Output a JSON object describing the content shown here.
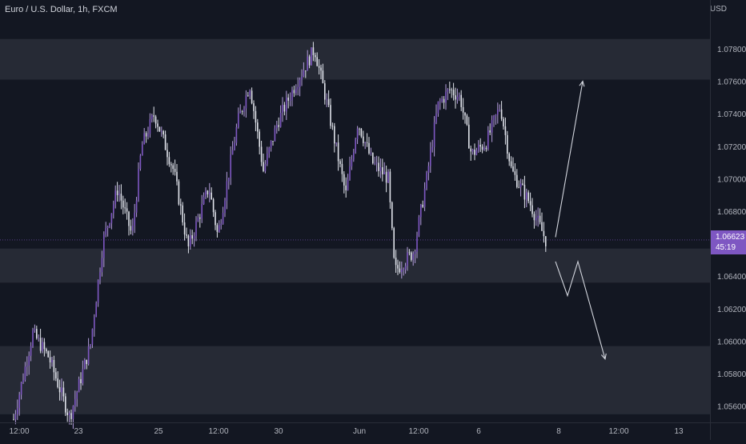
{
  "header": {
    "title": "Euro / U.S. Dollar, 1h, FXCM",
    "currency": "USD"
  },
  "last_price": {
    "value": "1.06623",
    "countdown": "45:19"
  },
  "colors": {
    "background": "#131722",
    "candle": "#b39ddb",
    "zone": "#262a35",
    "accent": "#7e57c2",
    "arrow": "#d1d4dc"
  },
  "chart_data": {
    "type": "candlestick",
    "title": "Euro / U.S. Dollar, 1h, FXCM",
    "y_unit": "USD",
    "ylim": [
      1.055,
      1.081
    ],
    "y_ticks": [
      "1.07800",
      "1.07600",
      "1.07400",
      "1.07200",
      "1.07000",
      "1.06800",
      "1.06400",
      "1.06200",
      "1.06000",
      "1.05800",
      "1.05600"
    ],
    "x_ticks": [
      "12:00",
      "23",
      "25",
      "12:00",
      "30",
      "Jun",
      "12:00",
      "6",
      "8",
      "12:00",
      "13"
    ],
    "grid": false,
    "zones": [
      {
        "from": 1.0761,
        "to": 1.0786
      },
      {
        "from": 1.0636,
        "to": 1.0657
      },
      {
        "from": 1.0555,
        "to": 1.0597
      }
    ],
    "last_price_line": 1.06623,
    "price_path": [
      {
        "x": 0,
        "y": 1.0552
      },
      {
        "x": 24,
        "y": 1.0605
      },
      {
        "x": 44,
        "y": 1.059
      },
      {
        "x": 70,
        "y": 1.0553
      },
      {
        "x": 96,
        "y": 1.0598
      },
      {
        "x": 112,
        "y": 1.0662
      },
      {
        "x": 130,
        "y": 1.0694
      },
      {
        "x": 148,
        "y": 1.0665
      },
      {
        "x": 160,
        "y": 1.072
      },
      {
        "x": 176,
        "y": 1.074
      },
      {
        "x": 200,
        "y": 1.0705
      },
      {
        "x": 218,
        "y": 1.0657
      },
      {
        "x": 244,
        "y": 1.0695
      },
      {
        "x": 255,
        "y": 1.0665
      },
      {
        "x": 280,
        "y": 1.0735
      },
      {
        "x": 295,
        "y": 1.0758
      },
      {
        "x": 312,
        "y": 1.0705
      },
      {
        "x": 330,
        "y": 1.0735
      },
      {
        "x": 352,
        "y": 1.0758
      },
      {
        "x": 376,
        "y": 1.078
      },
      {
        "x": 392,
        "y": 1.0745
      },
      {
        "x": 415,
        "y": 1.069
      },
      {
        "x": 430,
        "y": 1.0735
      },
      {
        "x": 448,
        "y": 1.071
      },
      {
        "x": 468,
        "y": 1.07
      },
      {
        "x": 476,
        "y": 1.0643
      },
      {
        "x": 500,
        "y": 1.0655
      },
      {
        "x": 516,
        "y": 1.07
      },
      {
        "x": 530,
        "y": 1.0745
      },
      {
        "x": 545,
        "y": 1.0755
      },
      {
        "x": 558,
        "y": 1.075
      },
      {
        "x": 572,
        "y": 1.0715
      },
      {
        "x": 590,
        "y": 1.0722
      },
      {
        "x": 608,
        "y": 1.0745
      },
      {
        "x": 622,
        "y": 1.0705
      },
      {
        "x": 645,
        "y": 1.0685
      },
      {
        "x": 665,
        "y": 1.0662
      }
    ],
    "projection_arrows": [
      {
        "points": [
          [
            694,
            1.0664
          ],
          [
            728,
            1.076
          ]
        ]
      },
      {
        "points": [
          [
            694,
            1.0649
          ],
          [
            709,
            1.0628
          ],
          [
            722,
            1.0649
          ],
          [
            756,
            1.0589
          ]
        ]
      }
    ]
  }
}
